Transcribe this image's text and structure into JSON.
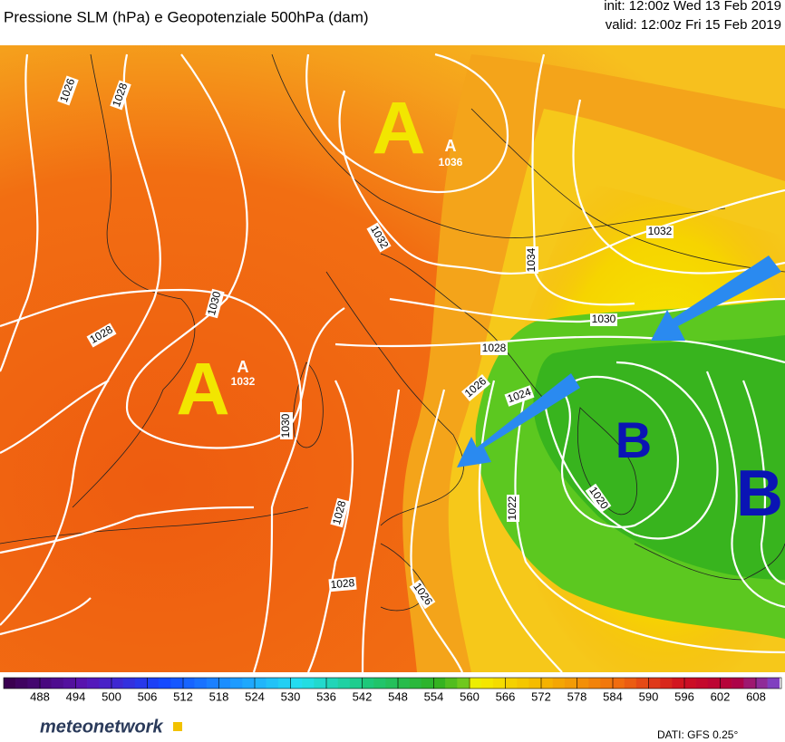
{
  "header": {
    "title": "Pressione SLM (hPa) e Geopotenziale 500hPa (dam)",
    "init": "init: 12:00z Wed 13 Feb 2019",
    "valid": "valid: 12:00z Fri 15 Feb 2019"
  },
  "map": {
    "pressure_centers": [
      {
        "letter": "A",
        "small_letter": "A",
        "value": 1036
      },
      {
        "letter": "A",
        "small_letter": "A",
        "value": 1032
      },
      {
        "letter": "B"
      },
      {
        "letter": "B"
      }
    ],
    "isobar_labels": [
      1026,
      1028,
      1032,
      1034,
      1032,
      1030,
      1028,
      1030,
      1028,
      1026,
      1024,
      1030,
      1022,
      1020,
      1028,
      1028,
      1026
    ]
  },
  "colorbar": {
    "labels": [
      488,
      494,
      500,
      506,
      512,
      518,
      524,
      530,
      536,
      542,
      548,
      554,
      560,
      566,
      572,
      578,
      584,
      590,
      596,
      602,
      608
    ]
  },
  "footer": {
    "brand": "meteonetwork",
    "source": "DATI: GFS 0.25°"
  }
}
